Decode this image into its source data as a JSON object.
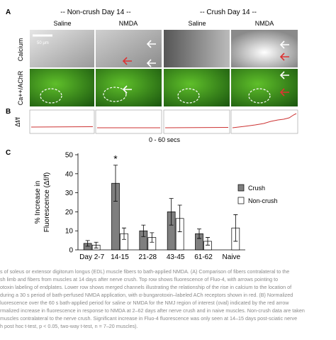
{
  "panel_a": {
    "label": "A",
    "group_titles": [
      "-- Non-crush Day 14 --",
      "-- Crush Day 14 --"
    ],
    "column_titles": [
      "Saline",
      "NMDA",
      "Saline",
      "NMDA"
    ],
    "row_titles": [
      "Calcium",
      "Ca++/AChR"
    ],
    "scale_bar": "50 μm"
  },
  "panel_b": {
    "label": "B",
    "ylabel": "Δf/f",
    "xlabel": "0 - 60 secs"
  },
  "chart_data": {
    "type": "bar",
    "label": "C",
    "ylabel": [
      "% Increase in",
      "Fluorescence (Δf/f)"
    ],
    "categories": [
      "Day 2-7",
      "14-15",
      "21-28",
      "43-45",
      "61-62",
      "Naive"
    ],
    "series": [
      {
        "name": "Crush",
        "color": "#7f7f7f",
        "values": [
          3.4,
          35,
          10,
          20,
          8.5,
          null
        ],
        "errors": [
          1.5,
          9.5,
          3,
          7,
          2.5,
          null
        ]
      },
      {
        "name": "Non-crush",
        "color": "#ffffff",
        "values": [
          2.5,
          8.5,
          6.5,
          16.5,
          4.5,
          11.5
        ],
        "errors": [
          1.5,
          3,
          2.5,
          7,
          2,
          7
        ]
      }
    ],
    "annotation": "*",
    "ylim": [
      0,
      50
    ],
    "yticks": [
      0,
      10,
      20,
      30,
      40,
      50
    ]
  },
  "caption": [
    "s of soleus or extensor digitorum longus (EDL) muscle fibers to bath-applied NMDA. (A) Comparison of fibers contralateral to the",
    "sh limb and fibers from muscles at 14 days after nerve crush. Top row shows fluorescence of Fluo-4, with arrows pointing to",
    "otoxin labeling of endplates. Lower row shows merged channels illustrating the relationship of the rise in calcium to the location of",
    "during a 30 s period of bath-perfused NMDA application, with α-bungarotoxin–labeled ACh receptors shown in red. (B) Normalized",
    "luorescence over the 60 s bath-applied period for saline or NMDA for the NMJ region of interest (oval) indicated by the red arrow",
    "rmalized increase in fluorescence in response to NMDA at 2–62 days after nerve crush and in naive muscles. Non-crush data are taken",
    "muscles contralateral to the nerve crush. Significant increase in Fluo-4 fluorescence was only seen at 14–15 days post-sciatic nerve",
    "h post hoc t-test, p < 0.05, two-way t-test, n = 7–20 muscles)."
  ]
}
